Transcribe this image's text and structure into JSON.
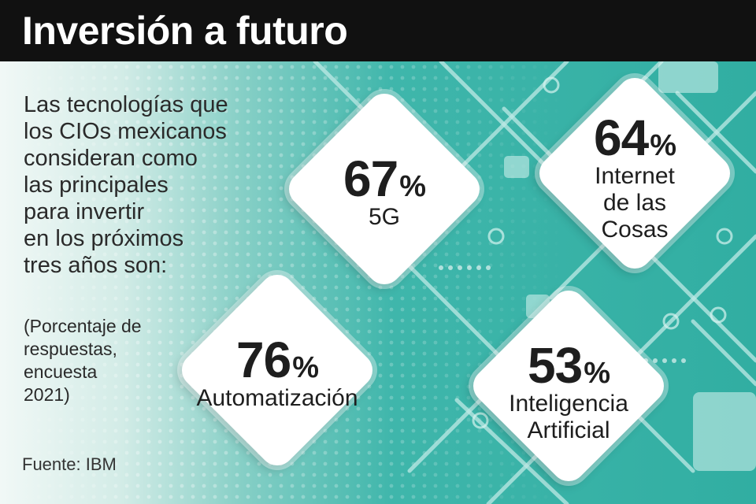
{
  "header": {
    "title": "Inversión a futuro"
  },
  "intro": {
    "lines": [
      "Las tecnologías que",
      "los CIOs mexicanos",
      "consideran como",
      "las principales",
      "para invertir",
      "en los próximos",
      "tres años son:"
    ]
  },
  "note": {
    "lines": [
      "(Porcentaje de",
      "respuestas,",
      "encuesta",
      "2021)"
    ]
  },
  "source": "Fuente: IBM",
  "percent_symbol": "%",
  "items": [
    {
      "value": "67",
      "label_lines": [
        "5G"
      ]
    },
    {
      "value": "64",
      "label_lines": [
        "Internet",
        "de las",
        "Cosas"
      ]
    },
    {
      "value": "76",
      "label_lines": [
        "Automatización"
      ]
    },
    {
      "value": "53",
      "label_lines": [
        "Inteligencia",
        "Artificial"
      ]
    }
  ],
  "colors": {
    "header_bg": "#111111",
    "header_text": "#ffffff",
    "teal": "#31aea2",
    "card_bg": "#ffffff",
    "text": "#1e1e1e"
  }
}
